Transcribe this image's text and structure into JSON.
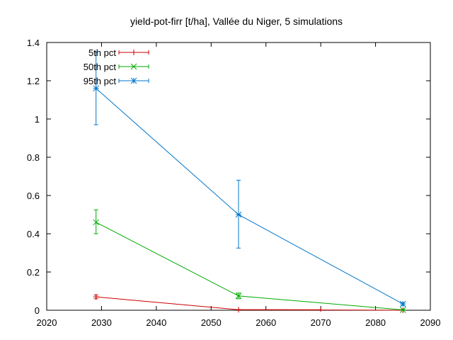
{
  "chart_data": {
    "type": "line",
    "title": "yield-pot-firr [t/ha], Vallée du Niger, 5 simulations",
    "xlabel": "",
    "ylabel": "",
    "xlim": [
      2020,
      2090
    ],
    "ylim": [
      0,
      1.4
    ],
    "xticks": [
      2020,
      2030,
      2040,
      2050,
      2060,
      2070,
      2080,
      2090
    ],
    "yticks": [
      0,
      0.2,
      0.4,
      0.6,
      0.8,
      1,
      1.2,
      1.4
    ],
    "grid": false,
    "legend": "top-left",
    "series": [
      {
        "name": "5th pct",
        "color": "#cc0000",
        "marker": "plus",
        "points": [
          {
            "x": 2029,
            "y": 0.07,
            "err_low": 0.06,
            "err_high": 0.08
          },
          {
            "x": 2055,
            "y": 0.003,
            "err_low": 0.003,
            "err_high": 0.003
          },
          {
            "x": 2085,
            "y": 0.0,
            "err_low": 0.0,
            "err_high": 0.0
          }
        ],
        "x_error_bars": [
          {
            "x_low": 2055,
            "x_high": 2070,
            "y": 0.003
          }
        ]
      },
      {
        "name": "50th pct",
        "color": "#00aa00",
        "marker": "x",
        "points": [
          {
            "x": 2029,
            "y": 0.46,
            "err_low": 0.4,
            "err_high": 0.525
          },
          {
            "x": 2055,
            "y": 0.075,
            "err_low": 0.06,
            "err_high": 0.09
          },
          {
            "x": 2085,
            "y": 0.002,
            "err_low": 0.0,
            "err_high": 0.004
          }
        ]
      },
      {
        "name": "95th pct",
        "color": "#0077cc",
        "marker": "star",
        "points": [
          {
            "x": 2029,
            "y": 1.16,
            "err_low": 0.97,
            "err_high": 1.35
          },
          {
            "x": 2055,
            "y": 0.5,
            "err_low": 0.325,
            "err_high": 0.68
          },
          {
            "x": 2085,
            "y": 0.033,
            "err_low": 0.025,
            "err_high": 0.04
          }
        ]
      }
    ]
  }
}
